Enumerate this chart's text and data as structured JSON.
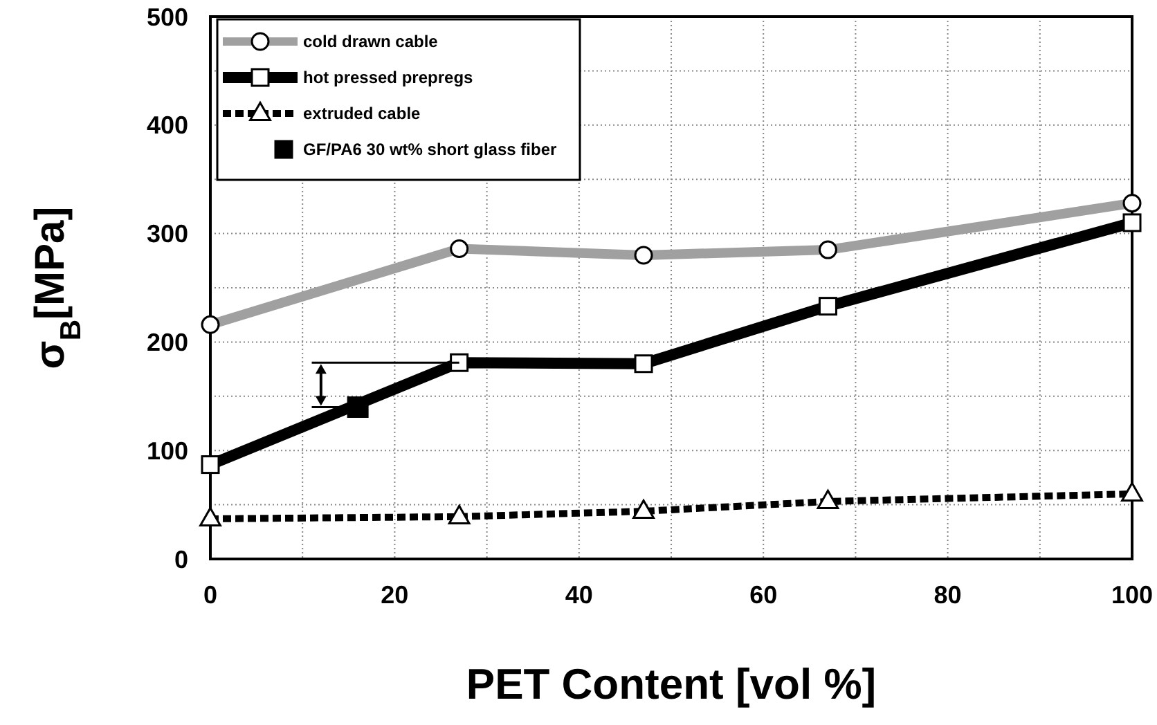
{
  "chart_data": {
    "type": "line",
    "xlabel": "PET Content [vol %]",
    "ylabel": "σ$_{B}$[MPa]",
    "xlim": [
      0,
      100
    ],
    "ylim": [
      0,
      500
    ],
    "xticks": [
      0,
      {
        "value": 10,
        "label": null
      },
      20,
      {
        "value": 30,
        "label": null
      },
      40,
      {
        "value": 50,
        "label": null
      },
      60,
      {
        "value": 70,
        "label": null
      },
      80,
      {
        "value": 90,
        "label": null
      },
      100
    ],
    "yticks": [
      0,
      {
        "value": 50,
        "label": null
      },
      100,
      {
        "value": 150,
        "label": null
      },
      200,
      {
        "value": 250,
        "label": null
      },
      300,
      {
        "value": 350,
        "label": null
      },
      400,
      {
        "value": 450,
        "label": null
      },
      500
    ],
    "grid": true,
    "legend": "top left",
    "series": [
      {
        "name": "cold drawn cable",
        "color": "#a0a0a0",
        "marker": "circle",
        "line_style": "solid",
        "x": [
          0,
          27,
          47,
          67,
          100
        ],
        "values": [
          216,
          286,
          280,
          285,
          328
        ]
      },
      {
        "name": "hot pressed prepregs",
        "color": "#000000",
        "marker": "square",
        "line_style": "solid",
        "x": [
          0,
          27,
          47,
          67,
          100
        ],
        "values": [
          87,
          181,
          180,
          233,
          310
        ]
      },
      {
        "name": "extruded cable",
        "color": "#000000",
        "marker": "triangle",
        "line_style": "dashed",
        "x": [
          0,
          27,
          47,
          67,
          100
        ],
        "values": [
          37,
          39,
          44,
          53,
          60
        ]
      },
      {
        "name": "GF/PA6 30 wt% short glass fiber",
        "type": "scatter",
        "color": "#000000",
        "marker": "square",
        "x": [
          16
        ],
        "values": [
          140
        ]
      }
    ]
  }
}
